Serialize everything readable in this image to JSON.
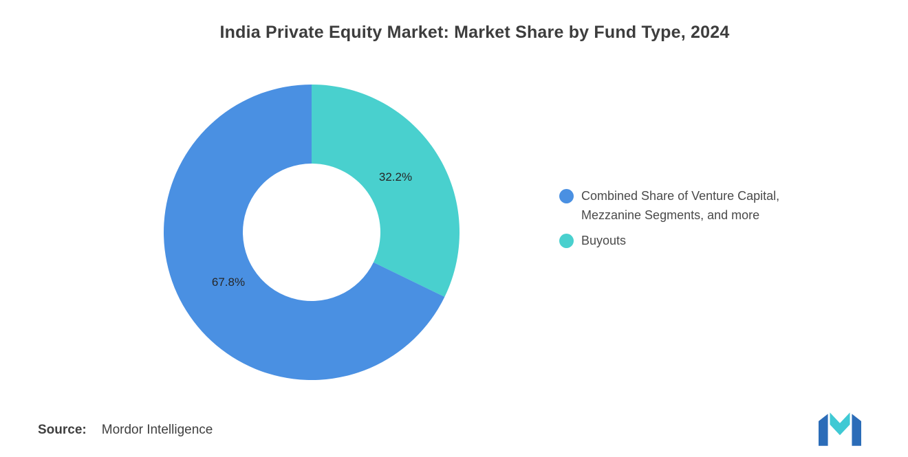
{
  "title": "India Private Equity Market: Market Share by Fund Type, 2024",
  "chart_data": {
    "type": "pie",
    "subtype": "donut",
    "title": "India Private Equity Market: Market Share by Fund Type, 2024",
    "slices": [
      {
        "label": "Combined Share of Venture Capital, Mezzanine Segments, and more",
        "value": 67.8,
        "data_label": "67.8%",
        "color": "#4A90E2"
      },
      {
        "label": "Buyouts",
        "value": 32.2,
        "data_label": "32.2%",
        "color": "#49D0CE"
      }
    ],
    "start_angle_deg": 0,
    "direction": "clockwise",
    "inner_radius_ratio": 0.465,
    "legend_position": "right",
    "background": "#FFFFFF"
  },
  "legend": {
    "items": [
      {
        "lines": [
          "Combined Share of Venture Capital,",
          "Mezzanine Segments, and more"
        ],
        "color": "#4A90E2"
      },
      {
        "lines": [
          "Buyouts"
        ],
        "color": "#49D0CE"
      }
    ]
  },
  "source": {
    "prefix": "Source:",
    "text": "Mordor Intelligence"
  },
  "logo": {
    "name": "mordor-intelligence-logo",
    "blue": "#2B6CB8",
    "teal": "#3FC9D4"
  }
}
